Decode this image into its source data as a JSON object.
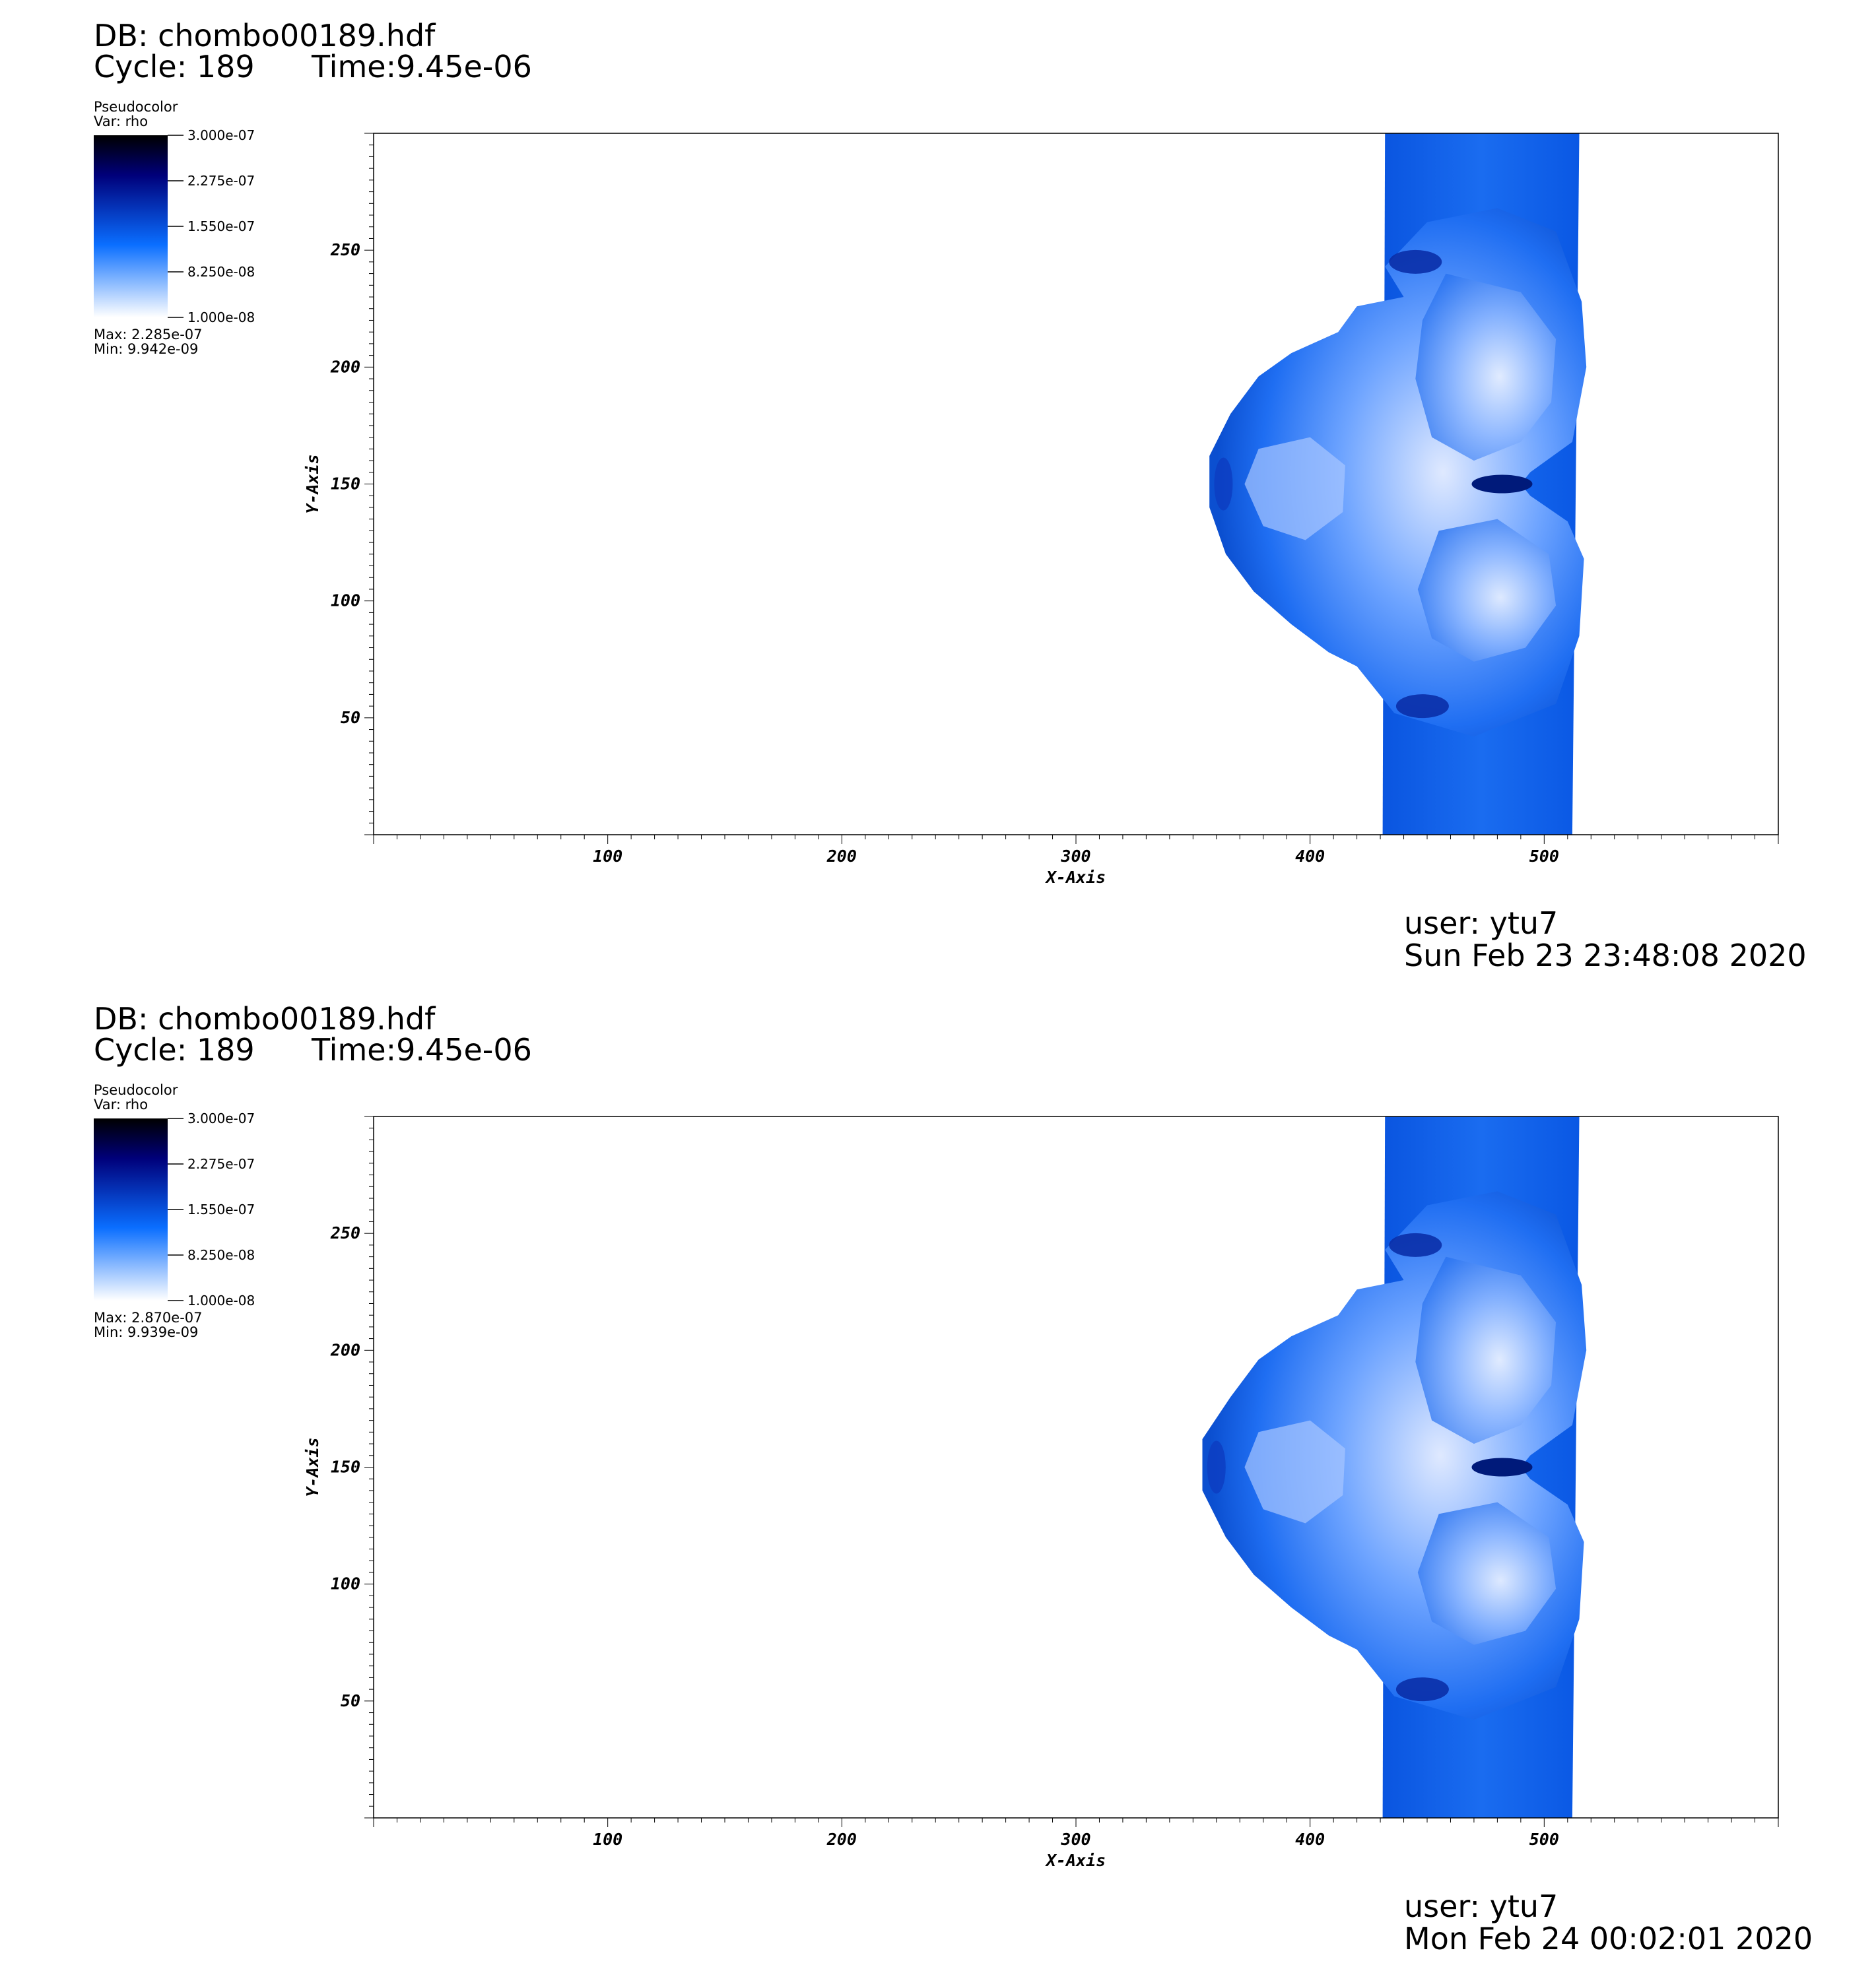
{
  "chart_data": [
    {
      "type": "heatmap",
      "header": {
        "db": "DB: chombo00189.hdf",
        "cycle": "Cycle: 189",
        "time": "Time:9.45e-06"
      },
      "legend": {
        "plot_type": "Pseudocolor",
        "var": "Var: rho",
        "ticks": [
          "3.000e-07",
          "2.275e-07",
          "1.550e-07",
          "8.250e-08",
          "1.000e-08"
        ],
        "max": "Max:  2.285e-07",
        "min": "Min:  9.942e-09"
      },
      "xlabel": "X-Axis",
      "ylabel": "Y-Axis",
      "xticks": [
        "100",
        "200",
        "300",
        "400",
        "500"
      ],
      "yticks": [
        "50",
        "100",
        "150",
        "200",
        "250"
      ],
      "xlim": [
        0,
        600
      ],
      "ylim": [
        0,
        300
      ],
      "colormap": [
        "#ffffff",
        "#0a6eff",
        "#00007a",
        "#000000"
      ],
      "user": "user: ytu7",
      "date": "Sun Feb 23 23:48:08 2020"
    },
    {
      "type": "heatmap",
      "header": {
        "db": "DB: chombo00189.hdf",
        "cycle": "Cycle: 189",
        "time": "Time:9.45e-06"
      },
      "legend": {
        "plot_type": "Pseudocolor",
        "var": "Var: rho",
        "ticks": [
          "3.000e-07",
          "2.275e-07",
          "1.550e-07",
          "8.250e-08",
          "1.000e-08"
        ],
        "max": "Max:  2.870e-07",
        "min": "Min:  9.939e-09"
      },
      "xlabel": "X-Axis",
      "ylabel": "Y-Axis",
      "xticks": [
        "100",
        "200",
        "300",
        "400",
        "500"
      ],
      "yticks": [
        "50",
        "100",
        "150",
        "200",
        "250"
      ],
      "xlim": [
        0,
        600
      ],
      "ylim": [
        0,
        300
      ],
      "colormap": [
        "#ffffff",
        "#0a6eff",
        "#00007a",
        "#000000"
      ],
      "user": "user: ytu7",
      "date": "Mon Feb 24 00:02:01 2020"
    }
  ]
}
